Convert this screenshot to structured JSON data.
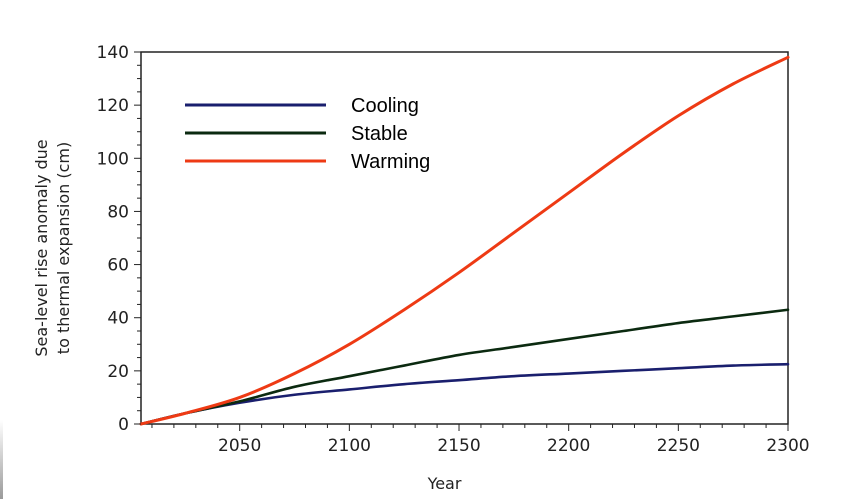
{
  "chart_data": {
    "type": "line",
    "title": "",
    "xlabel": "Year",
    "ylabel_lines": [
      "Sea-level rise anomaly due",
      "to thermal expansion (cm)"
    ],
    "xlim": [
      2005,
      2300
    ],
    "ylim": [
      0,
      140
    ],
    "xticks": [
      2050,
      2100,
      2150,
      2200,
      2250,
      2300
    ],
    "xtick_labels": [
      "2050",
      "2100",
      "2150",
      "2200",
      "2250",
      "2300"
    ],
    "yticks": [
      0,
      20,
      40,
      60,
      80,
      100,
      120,
      140
    ],
    "ytick_labels": [
      "0",
      "20",
      "40",
      "60",
      "80",
      "100",
      "120",
      "140"
    ],
    "grid": false,
    "legend_position": "top-left",
    "x": [
      2005,
      2025,
      2050,
      2075,
      2100,
      2125,
      2150,
      2175,
      2200,
      2225,
      2250,
      2275,
      2300
    ],
    "series": [
      {
        "name": "Cooling",
        "color": "#1a1f6e",
        "values": [
          0,
          4,
          8,
          11,
          13,
          15,
          16.5,
          18,
          19,
          20,
          21,
          22,
          22.5
        ]
      },
      {
        "name": "Stable",
        "color": "#0b2a10",
        "values": [
          0,
          4,
          8.5,
          14,
          18,
          22,
          26,
          29,
          32,
          35,
          38,
          40.5,
          43
        ]
      },
      {
        "name": "Warming",
        "color": "#ee3a14",
        "values": [
          0,
          4,
          10,
          19,
          30,
          43,
          57,
          72,
          87,
          102,
          116,
          128,
          138
        ]
      }
    ]
  }
}
